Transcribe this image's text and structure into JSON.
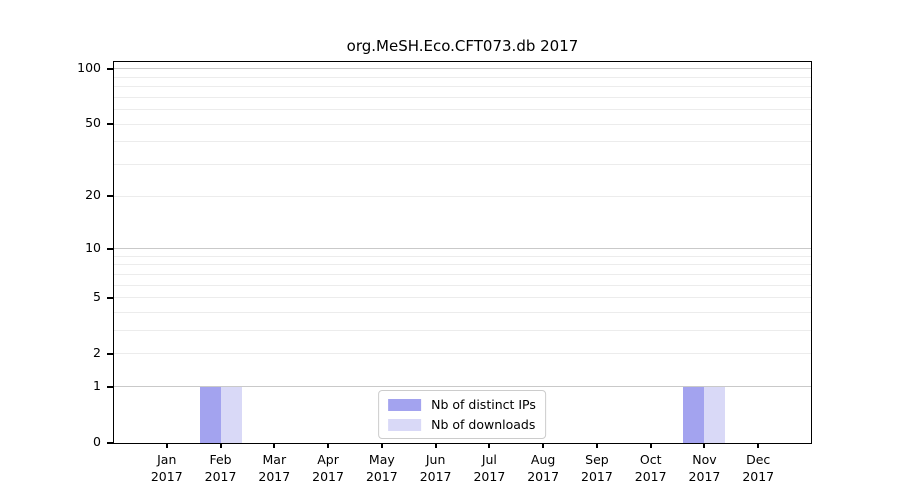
{
  "title": "org.MeSH.Eco.CFT073.db 2017",
  "chart_data": {
    "type": "bar",
    "title": "org.MeSH.Eco.CFT073.db 2017",
    "categories": [
      "Jan",
      "Feb",
      "Mar",
      "Apr",
      "May",
      "Jun",
      "Jul",
      "Aug",
      "Sep",
      "Oct",
      "Nov",
      "Dec"
    ],
    "category_year": "2017",
    "series": [
      {
        "name": "Nb of distinct IPs",
        "color": "#a3a3ef",
        "values": [
          0,
          1,
          0,
          0,
          0,
          0,
          0,
          0,
          0,
          0,
          1,
          0
        ]
      },
      {
        "name": "Nb of downloads",
        "color": "#d9d9f7",
        "values": [
          0,
          1,
          0,
          0,
          0,
          0,
          0,
          0,
          0,
          0,
          1,
          0
        ]
      }
    ],
    "yscale": "log1p",
    "ylim": [
      0,
      110
    ],
    "yticks": [
      0,
      1,
      2,
      5,
      10,
      20,
      50,
      100
    ],
    "minor_yticks": [
      3,
      4,
      6,
      7,
      8,
      9,
      30,
      40,
      60,
      70,
      80,
      90
    ],
    "emphasized_gridlines": [
      1,
      10,
      100
    ],
    "xlabel": "",
    "ylabel": "",
    "grid": true,
    "legend_position": "lower center",
    "colors": {
      "grid_minor": "#ececec",
      "grid_major": "#c9c9c9",
      "axis": "#000000",
      "background": "#ffffff"
    }
  }
}
